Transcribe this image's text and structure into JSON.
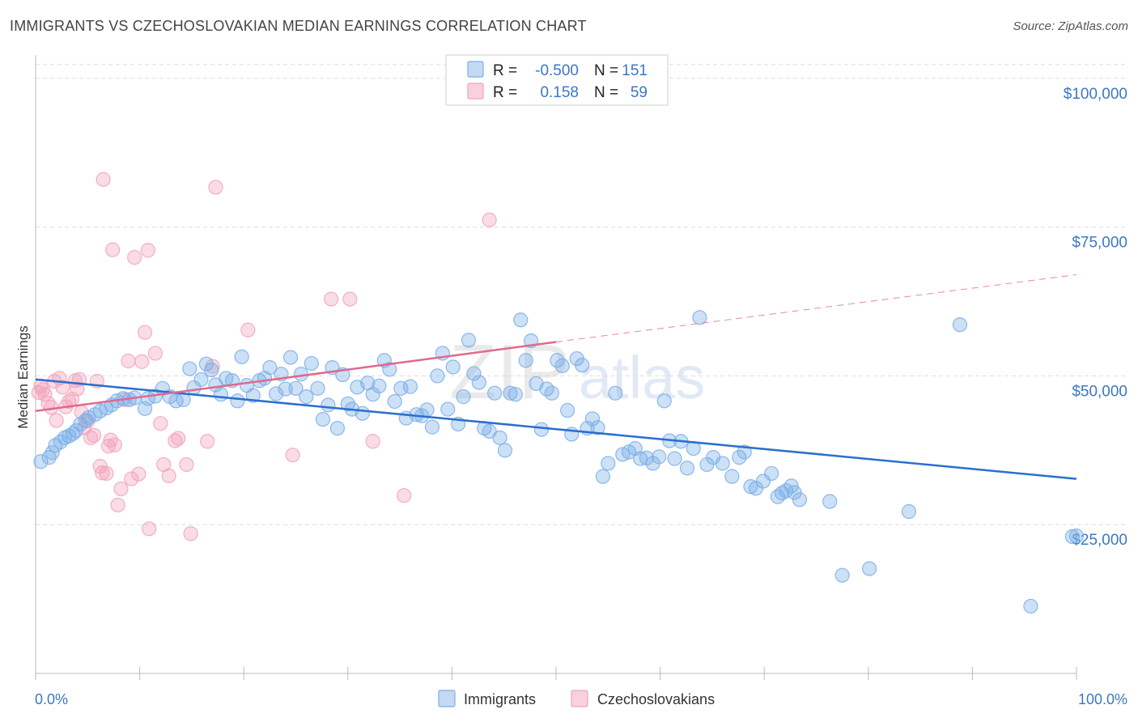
{
  "title": "IMMIGRANTS VS CZECHOSLOVAKIAN MEDIAN EARNINGS CORRELATION CHART",
  "source": "Source: ZipAtlas.com",
  "watermark": {
    "part1": "ZIP",
    "part2": "atlas"
  },
  "colors": {
    "immigrants": "#7aaee8",
    "immigrants_line": "#2a6fcf",
    "czechoslovakians": "#f2a2bb",
    "czechoslovakians_line": "#e0698f",
    "axis_text": "#3b78c4",
    "grid": "#dddddd"
  },
  "chart_data": {
    "type": "scatter",
    "title": "IMMIGRANTS VS CZECHOSLOVAKIAN MEDIAN EARNINGS CORRELATION CHART",
    "xlabel": "",
    "ylabel": "Median Earnings",
    "xlim": [
      0,
      100
    ],
    "ylim": [
      0,
      105000
    ],
    "x_tick_labels": [
      "0.0%",
      "100.0%"
    ],
    "y_ticks": [
      25000,
      50000,
      75000,
      100000
    ],
    "y_tick_labels": [
      "$25,000",
      "$50,000",
      "$75,000",
      "$100,000"
    ],
    "grid": true,
    "legend": {
      "position": "top-center",
      "entries": [
        {
          "r_label": "R =",
          "r_value": "-0.500",
          "n_label": "N =",
          "n_value": "151"
        },
        {
          "r_label": "R =",
          "r_value": "0.158",
          "n_label": "N =",
          "n_value": "59"
        }
      ]
    },
    "series": [
      {
        "name": "Immigrants",
        "color": "#7aaee8",
        "trend": {
          "x": [
            0,
            100
          ],
          "y": [
            49400,
            32700
          ]
        },
        "points": [
          [
            0.5,
            35600
          ],
          [
            1.3,
            36300
          ],
          [
            1.6,
            37100
          ],
          [
            1.9,
            38300
          ],
          [
            2.4,
            38900
          ],
          [
            2.8,
            39600
          ],
          [
            3.2,
            39900
          ],
          [
            3.6,
            40300
          ],
          [
            3.9,
            40800
          ],
          [
            4.3,
            41900
          ],
          [
            4.8,
            42500
          ],
          [
            5.1,
            43000
          ],
          [
            5.7,
            43500
          ],
          [
            6.2,
            44100
          ],
          [
            6.8,
            44600
          ],
          [
            7.3,
            45100
          ],
          [
            7.8,
            45800
          ],
          [
            8.4,
            46200
          ],
          [
            9.0,
            46000
          ],
          [
            9.5,
            46300
          ],
          [
            10.5,
            44500
          ],
          [
            10.8,
            46200
          ],
          [
            11.5,
            46600
          ],
          [
            12.2,
            47900
          ],
          [
            12.9,
            46500
          ],
          [
            13.5,
            45800
          ],
          [
            14.2,
            46000
          ],
          [
            14.8,
            51200
          ],
          [
            15.2,
            48000
          ],
          [
            15.9,
            49400
          ],
          [
            16.4,
            52000
          ],
          [
            16.9,
            51000
          ],
          [
            17.3,
            48500
          ],
          [
            17.8,
            46900
          ],
          [
            18.3,
            49600
          ],
          [
            18.9,
            49200
          ],
          [
            19.4,
            45800
          ],
          [
            19.8,
            53200
          ],
          [
            20.3,
            48400
          ],
          [
            20.9,
            46700
          ],
          [
            21.5,
            49200
          ],
          [
            22.0,
            49600
          ],
          [
            22.5,
            51400
          ],
          [
            23.1,
            47000
          ],
          [
            23.6,
            50300
          ],
          [
            24.0,
            47800
          ],
          [
            24.5,
            53100
          ],
          [
            25.0,
            47900
          ],
          [
            25.5,
            50300
          ],
          [
            26.0,
            46500
          ],
          [
            26.5,
            52100
          ],
          [
            27.1,
            47900
          ],
          [
            27.6,
            42700
          ],
          [
            28.1,
            45100
          ],
          [
            28.5,
            51400
          ],
          [
            29.0,
            41200
          ],
          [
            29.5,
            50200
          ],
          [
            30.0,
            45300
          ],
          [
            30.4,
            44400
          ],
          [
            30.9,
            48100
          ],
          [
            31.4,
            43700
          ],
          [
            31.9,
            48800
          ],
          [
            32.4,
            46900
          ],
          [
            33.0,
            48300
          ],
          [
            33.5,
            52600
          ],
          [
            34.0,
            51100
          ],
          [
            34.5,
            45700
          ],
          [
            35.1,
            47900
          ],
          [
            35.6,
            42900
          ],
          [
            36.0,
            48200
          ],
          [
            36.6,
            43500
          ],
          [
            37.1,
            43300
          ],
          [
            37.6,
            44300
          ],
          [
            38.1,
            41400
          ],
          [
            38.6,
            50000
          ],
          [
            39.1,
            53800
          ],
          [
            39.6,
            44400
          ],
          [
            40.1,
            51500
          ],
          [
            40.6,
            41900
          ],
          [
            41.1,
            46500
          ],
          [
            41.6,
            56000
          ],
          [
            42.1,
            50400
          ],
          [
            42.6,
            48900
          ],
          [
            43.1,
            41200
          ],
          [
            43.6,
            40700
          ],
          [
            44.1,
            47100
          ],
          [
            44.6,
            39600
          ],
          [
            45.1,
            37500
          ],
          [
            45.6,
            47100
          ],
          [
            46.1,
            46900
          ],
          [
            46.6,
            59400
          ],
          [
            47.1,
            52600
          ],
          [
            47.6,
            55900
          ],
          [
            48.1,
            48700
          ],
          [
            48.6,
            41000
          ],
          [
            49.1,
            47800
          ],
          [
            49.6,
            47100
          ],
          [
            50.1,
            52600
          ],
          [
            50.6,
            51700
          ],
          [
            51.1,
            44200
          ],
          [
            51.5,
            40200
          ],
          [
            52.0,
            52900
          ],
          [
            52.5,
            51800
          ],
          [
            53.0,
            41200
          ],
          [
            53.5,
            42800
          ],
          [
            54.0,
            41300
          ],
          [
            54.5,
            33100
          ],
          [
            55.0,
            35300
          ],
          [
            55.7,
            47100
          ],
          [
            56.4,
            36800
          ],
          [
            57.0,
            37200
          ],
          [
            57.6,
            37800
          ],
          [
            58.1,
            36100
          ],
          [
            58.7,
            36200
          ],
          [
            59.3,
            35300
          ],
          [
            59.9,
            36400
          ],
          [
            60.4,
            45800
          ],
          [
            60.9,
            39100
          ],
          [
            61.4,
            36100
          ],
          [
            62.0,
            39000
          ],
          [
            62.6,
            34500
          ],
          [
            63.2,
            37800
          ],
          [
            63.8,
            59800
          ],
          [
            64.5,
            35100
          ],
          [
            65.1,
            36300
          ],
          [
            66.0,
            35300
          ],
          [
            66.9,
            33100
          ],
          [
            67.6,
            36300
          ],
          [
            68.1,
            37200
          ],
          [
            68.7,
            31400
          ],
          [
            69.2,
            31100
          ],
          [
            69.9,
            32300
          ],
          [
            70.7,
            33600
          ],
          [
            71.3,
            29700
          ],
          [
            71.7,
            30300
          ],
          [
            72.1,
            30700
          ],
          [
            72.6,
            31500
          ],
          [
            72.9,
            30400
          ],
          [
            73.4,
            29200
          ],
          [
            76.3,
            28900
          ],
          [
            77.5,
            16500
          ],
          [
            80.1,
            17600
          ],
          [
            83.9,
            27200
          ],
          [
            88.8,
            58600
          ],
          [
            95.6,
            11300
          ],
          [
            99.6,
            23000
          ],
          [
            100.0,
            23100
          ]
        ]
      },
      {
        "name": "Czechoslovakians",
        "color": "#f2a2bb",
        "trend": {
          "x": [
            0,
            50
          ],
          "y": [
            44100,
            55700
          ],
          "dashed_extension": {
            "x": [
              50,
              100
            ],
            "y": [
              55700,
              67000
            ]
          }
        },
        "points": [
          [
            0.3,
            47200
          ],
          [
            0.5,
            48300
          ],
          [
            0.7,
            47700
          ],
          [
            0.9,
            46900
          ],
          [
            1.2,
            45400
          ],
          [
            1.5,
            44700
          ],
          [
            1.8,
            49100
          ],
          [
            2.0,
            42500
          ],
          [
            2.3,
            49600
          ],
          [
            2.6,
            48100
          ],
          [
            2.9,
            44800
          ],
          [
            3.2,
            45700
          ],
          [
            3.5,
            46100
          ],
          [
            3.8,
            49200
          ],
          [
            4.0,
            47800
          ],
          [
            4.2,
            49400
          ],
          [
            4.4,
            43900
          ],
          [
            4.7,
            41300
          ],
          [
            5.0,
            42400
          ],
          [
            5.3,
            39600
          ],
          [
            5.6,
            40000
          ],
          [
            5.9,
            49100
          ],
          [
            6.2,
            34800
          ],
          [
            6.4,
            33700
          ],
          [
            6.5,
            83000
          ],
          [
            6.8,
            33600
          ],
          [
            7.0,
            38200
          ],
          [
            7.2,
            39200
          ],
          [
            7.4,
            71200
          ],
          [
            7.6,
            38400
          ],
          [
            7.9,
            28300
          ],
          [
            8.2,
            31000
          ],
          [
            8.6,
            46000
          ],
          [
            8.9,
            52500
          ],
          [
            9.2,
            32700
          ],
          [
            9.5,
            69900
          ],
          [
            9.9,
            33500
          ],
          [
            10.2,
            52400
          ],
          [
            10.5,
            57300
          ],
          [
            10.8,
            71100
          ],
          [
            10.9,
            24300
          ],
          [
            11.5,
            53800
          ],
          [
            12.0,
            42000
          ],
          [
            12.3,
            35100
          ],
          [
            12.8,
            33200
          ],
          [
            13.4,
            39100
          ],
          [
            13.7,
            39500
          ],
          [
            14.5,
            35100
          ],
          [
            14.9,
            23500
          ],
          [
            16.5,
            39000
          ],
          [
            17.0,
            51600
          ],
          [
            17.3,
            81700
          ],
          [
            20.4,
            57700
          ],
          [
            24.7,
            36700
          ],
          [
            28.4,
            62900
          ],
          [
            30.2,
            62900
          ],
          [
            32.4,
            39000
          ],
          [
            35.4,
            29900
          ],
          [
            43.6,
            76200
          ]
        ]
      }
    ]
  },
  "bottom_legend": [
    "Immigrants",
    "Czechoslovakians"
  ]
}
